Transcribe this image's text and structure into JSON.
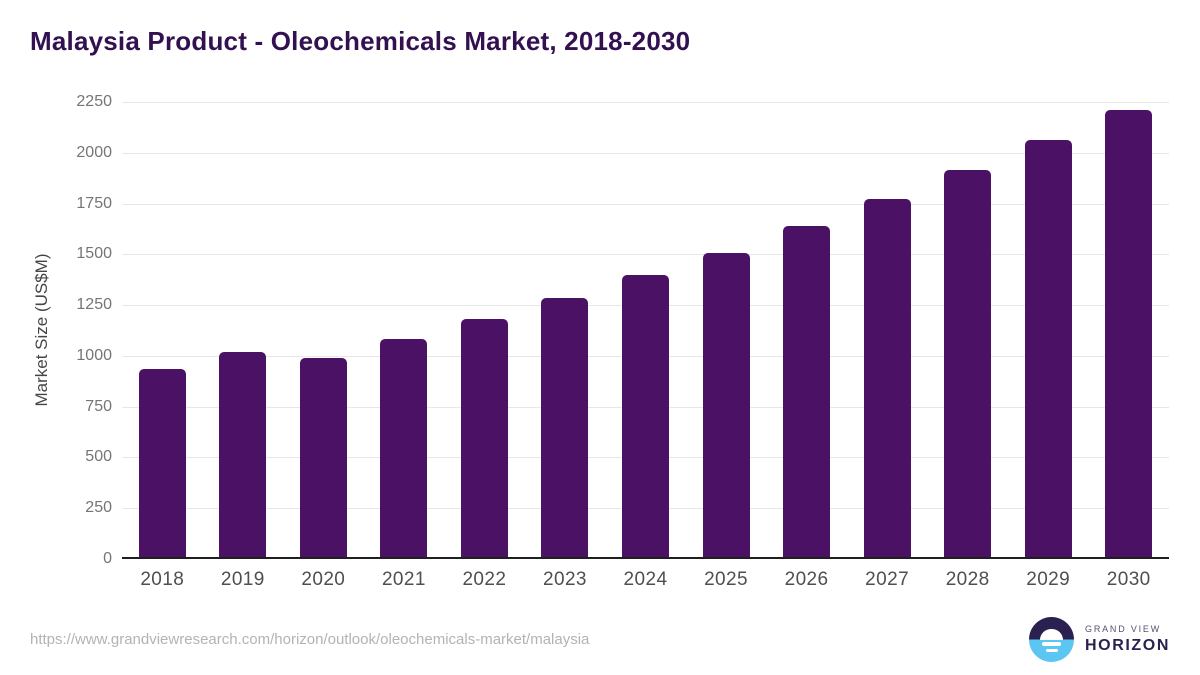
{
  "header": {
    "title": "Malaysia Product - Oleochemicals Market, 2018-2030"
  },
  "chart_data": {
    "type": "bar",
    "title": "Malaysia Product - Oleochemicals Market, 2018-2030",
    "categories": [
      "2018",
      "2019",
      "2020",
      "2021",
      "2022",
      "2023",
      "2024",
      "2025",
      "2026",
      "2027",
      "2028",
      "2029",
      "2030"
    ],
    "values": [
      934,
      1017,
      990,
      1083,
      1180,
      1284,
      1396,
      1509,
      1640,
      1774,
      1913,
      2061,
      2213
    ],
    "xlabel": "",
    "ylabel": "Market Size (US$M)",
    "ylim": [
      0,
      2250
    ],
    "yticks": [
      0,
      250,
      500,
      750,
      1000,
      1250,
      1500,
      1750,
      2000,
      2250
    ],
    "grid": "horizontal",
    "legend": "none",
    "bar_color": "#4a1164"
  },
  "footer": {
    "source_url": "https://www.grandviewresearch.com/horizon/outlook/oleochemicals-market/malaysia",
    "logo": {
      "brand": "GRAND VIEW",
      "product": "HORIZON"
    }
  },
  "colors": {
    "title": "#331150",
    "bar": "#4a1164",
    "tick_label": "#757575",
    "x_label": "#4f4f4f",
    "y_title": "#464646",
    "axis_line": "#1f1f1f",
    "gridline": "#e7e7e7",
    "url": "#b3b3b3",
    "logo_dark": "#2b2150",
    "logo_blue": "#5bc6f1",
    "logo_gray": "#55516e"
  }
}
